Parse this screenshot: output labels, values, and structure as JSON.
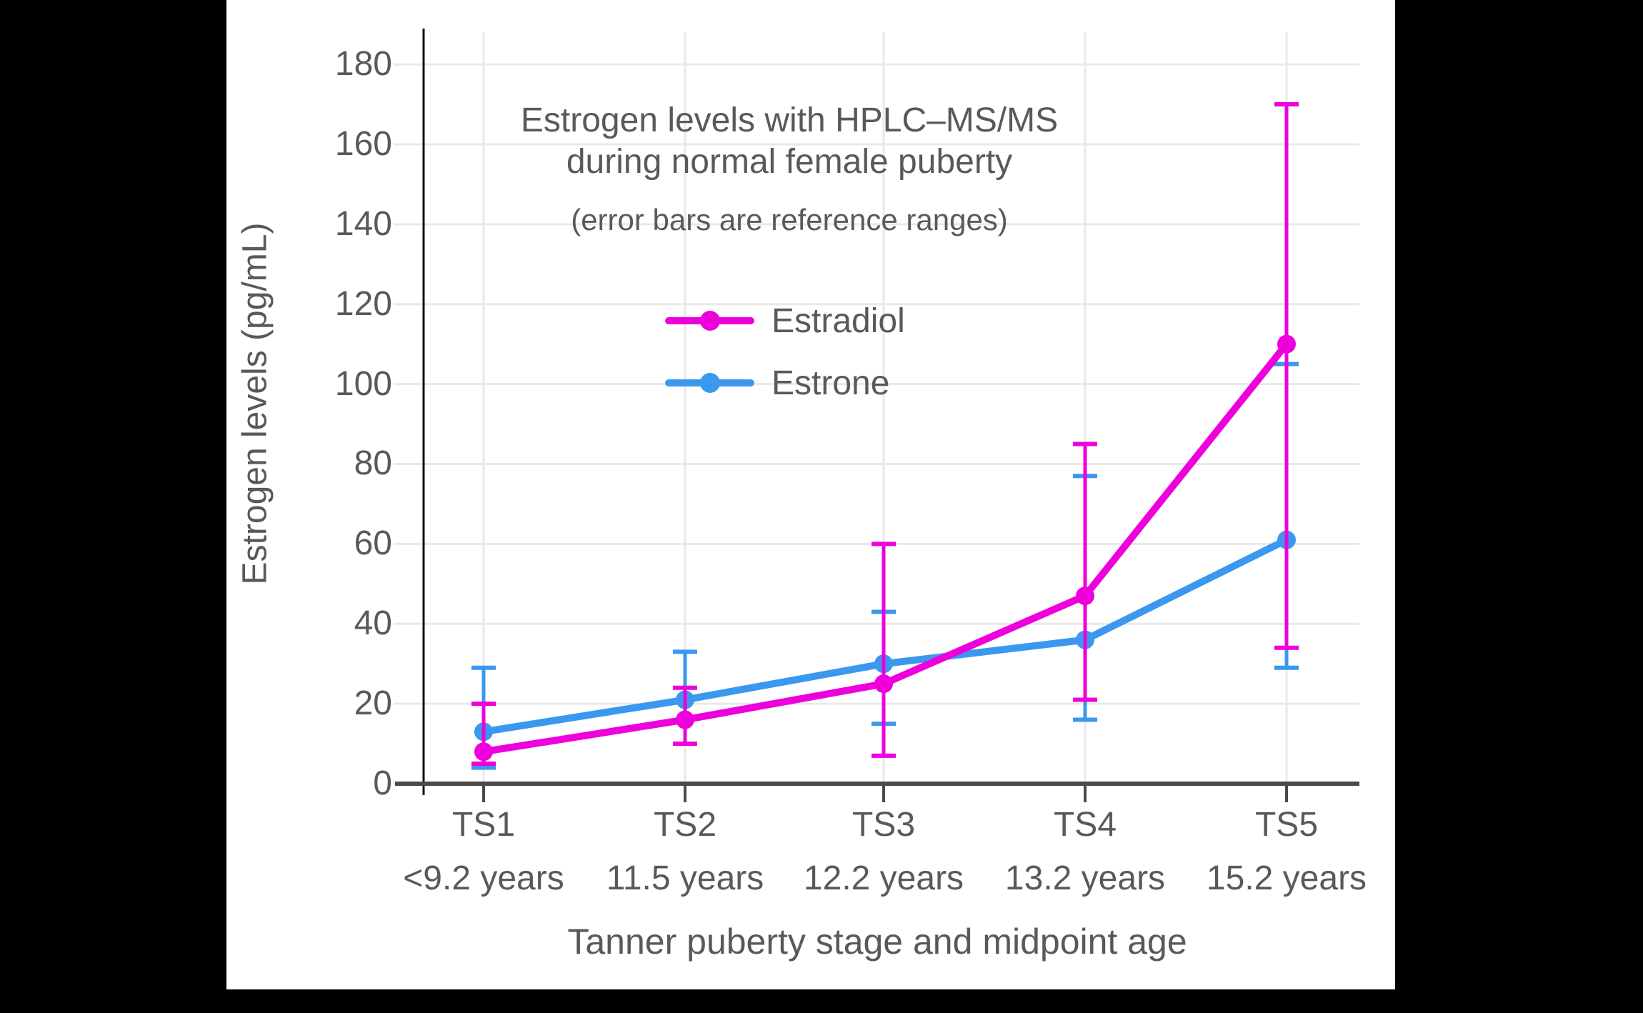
{
  "frame": {
    "background_color": "#000000",
    "canvas_color": "#ffffff",
    "text_color": "#595959",
    "gridline_color": "#e9e9e9",
    "axis_line_color": "#4a4a4a",
    "spine_color": "#111111"
  },
  "chart_data": {
    "type": "line",
    "title_lines": {
      "0": "Estrogen levels with HPLC–MS/MS",
      "1": "during normal female puberty"
    },
    "subtitle": "(error bars are reference ranges)",
    "xlabel": "Tanner puberty stage and midpoint age",
    "ylabel": "Estrogen levels (pg/mL)",
    "categories": [
      "TS1",
      "TS2",
      "TS3",
      "TS4",
      "TS5"
    ],
    "category_sublabels": [
      "<9.2 years",
      "11.5 years",
      "12.2 years",
      "13.2 years",
      "15.2 years"
    ],
    "y_ticks": [
      0,
      20,
      40,
      60,
      80,
      100,
      120,
      140,
      160,
      180
    ],
    "ylim": [
      0,
      188
    ],
    "grid": true,
    "legend_position": "upper-left-inside",
    "error_bar_meaning": "reference ranges",
    "series": [
      {
        "name": "Estradiol",
        "color": "#ee00dd",
        "values": [
          8,
          16,
          25,
          47,
          110
        ],
        "range_low": [
          5,
          10,
          7,
          21,
          34
        ],
        "range_high": [
          20,
          24,
          60,
          85,
          170
        ]
      },
      {
        "name": "Estrone",
        "color": "#3a98ee",
        "values": [
          13,
          21,
          30,
          36,
          61
        ],
        "range_low": [
          4,
          10,
          15,
          16,
          29
        ],
        "range_high": [
          29,
          33,
          43,
          77,
          105
        ]
      }
    ]
  },
  "legend": {
    "items": [
      {
        "label": "Estradiol"
      },
      {
        "label": "Estrone"
      }
    ]
  }
}
